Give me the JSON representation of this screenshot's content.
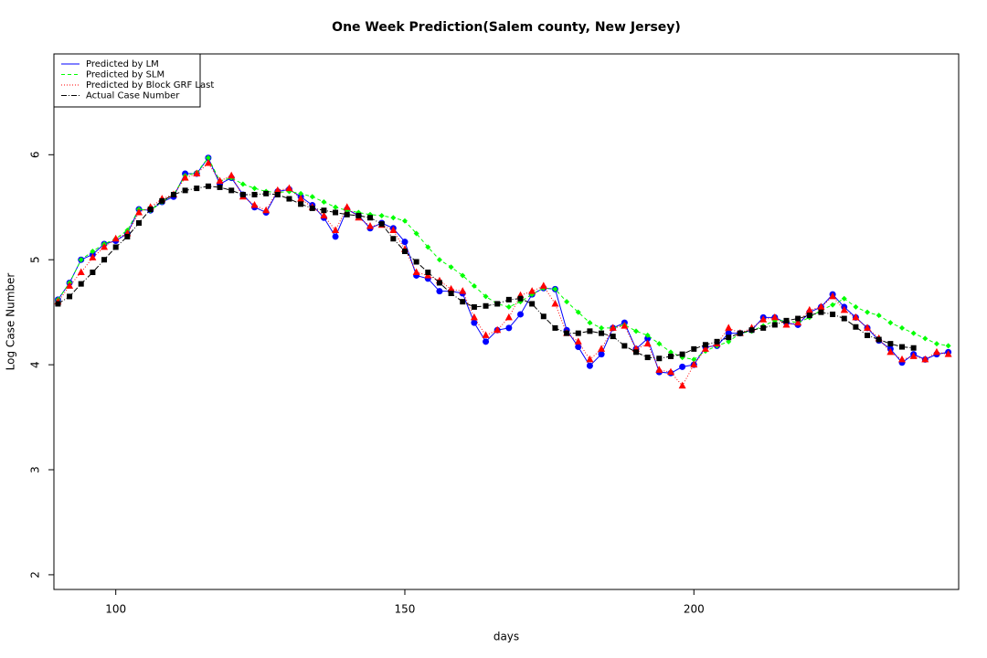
{
  "chart_data": {
    "type": "line",
    "title": "One Week Prediction(Salem county, New Jersey)",
    "x_label": "days",
    "y_label": "Log Case Number",
    "xlim": [
      89.3,
      245.8
    ],
    "ylim": [
      1.86,
      6.96
    ],
    "xticks": [
      100,
      150,
      200
    ],
    "yticks": [
      2,
      3,
      4,
      5,
      6
    ],
    "legend_position": "top-left",
    "x": [
      90,
      92,
      94,
      96,
      98,
      100,
      102,
      104,
      106,
      108,
      110,
      112,
      114,
      116,
      118,
      120,
      122,
      124,
      126,
      128,
      130,
      132,
      134,
      136,
      138,
      140,
      142,
      144,
      146,
      148,
      150,
      152,
      154,
      156,
      158,
      160,
      162,
      164,
      166,
      168,
      170,
      172,
      174,
      176,
      178,
      180,
      182,
      184,
      186,
      188,
      190,
      192,
      194,
      196,
      198,
      200,
      202,
      204,
      206,
      208,
      210,
      212,
      214,
      216,
      218,
      220,
      222,
      224,
      226,
      228,
      230,
      232,
      234,
      236,
      238,
      240,
      242,
      244
    ],
    "series": [
      {
        "name": "Predicted by LM",
        "color": "#0000ff",
        "line_style": "solid",
        "marker": "circle",
        "values": [
          4.62,
          4.78,
          5.0,
          5.05,
          5.15,
          5.18,
          5.25,
          5.48,
          5.47,
          5.55,
          5.6,
          5.82,
          5.82,
          5.97,
          5.72,
          5.78,
          5.62,
          5.5,
          5.45,
          5.65,
          5.67,
          5.6,
          5.52,
          5.4,
          5.22,
          5.48,
          5.42,
          5.3,
          5.35,
          5.3,
          5.17,
          4.85,
          4.82,
          4.7,
          4.7,
          4.68,
          4.4,
          4.22,
          4.33,
          4.35,
          4.48,
          4.67,
          4.73,
          4.72,
          4.33,
          4.17,
          3.99,
          4.1,
          4.35,
          4.4,
          4.15,
          4.25,
          3.93,
          3.92,
          3.98,
          4.0,
          4.17,
          4.18,
          4.3,
          4.3,
          4.33,
          4.45,
          4.45,
          4.4,
          4.38,
          4.5,
          4.55,
          4.67,
          4.55,
          4.45,
          4.35,
          4.23,
          4.15,
          4.02,
          4.1,
          4.05,
          4.1,
          4.12
        ]
      },
      {
        "name": "Predicted by SLM",
        "color": "#00ff00",
        "line_style": "dashed",
        "marker": "diamond",
        "values": [
          4.62,
          4.78,
          5.0,
          5.08,
          5.15,
          5.2,
          5.28,
          5.48,
          5.47,
          5.55,
          5.62,
          5.8,
          5.83,
          5.97,
          5.75,
          5.78,
          5.72,
          5.68,
          5.65,
          5.64,
          5.65,
          5.63,
          5.6,
          5.55,
          5.5,
          5.47,
          5.45,
          5.43,
          5.42,
          5.4,
          5.37,
          5.25,
          5.12,
          5.0,
          4.93,
          4.85,
          4.75,
          4.65,
          4.58,
          4.55,
          4.6,
          4.67,
          4.73,
          4.72,
          4.6,
          4.5,
          4.4,
          4.35,
          4.35,
          4.38,
          4.32,
          4.28,
          4.2,
          4.12,
          4.07,
          4.05,
          4.13,
          4.18,
          4.22,
          4.3,
          4.32,
          4.37,
          4.42,
          4.42,
          4.4,
          4.45,
          4.52,
          4.57,
          4.63,
          4.55,
          4.5,
          4.47,
          4.4,
          4.35,
          4.3,
          4.25,
          4.2,
          4.18
        ]
      },
      {
        "name": "Predicted by Block GRF Last",
        "color": "#ff0000",
        "line_style": "dotted",
        "marker": "triangle",
        "values": [
          4.6,
          4.75,
          4.88,
          5.02,
          5.12,
          5.2,
          5.25,
          5.45,
          5.5,
          5.58,
          5.62,
          5.78,
          5.82,
          5.92,
          5.75,
          5.8,
          5.6,
          5.52,
          5.47,
          5.66,
          5.68,
          5.58,
          5.5,
          5.42,
          5.28,
          5.5,
          5.4,
          5.32,
          5.33,
          5.28,
          5.1,
          4.88,
          4.85,
          4.8,
          4.72,
          4.7,
          4.45,
          4.28,
          4.33,
          4.45,
          4.66,
          4.7,
          4.75,
          4.58,
          4.3,
          4.22,
          4.05,
          4.15,
          4.35,
          4.37,
          4.15,
          4.2,
          3.95,
          3.93,
          3.8,
          4.0,
          4.15,
          4.2,
          4.35,
          4.3,
          4.35,
          4.43,
          4.45,
          4.38,
          4.4,
          4.52,
          4.55,
          4.65,
          4.52,
          4.45,
          4.35,
          4.25,
          4.12,
          4.05,
          4.08,
          4.05,
          4.12,
          4.1
        ]
      },
      {
        "name": "Actual Case Number",
        "color": "#000000",
        "line_style": "dashdot",
        "marker": "square",
        "values": [
          4.58,
          4.65,
          4.77,
          4.88,
          5.0,
          5.12,
          5.22,
          5.35,
          5.48,
          5.56,
          5.62,
          5.66,
          5.68,
          5.7,
          5.69,
          5.66,
          5.62,
          5.62,
          5.63,
          5.62,
          5.58,
          5.53,
          5.49,
          5.47,
          5.45,
          5.43,
          5.42,
          5.4,
          5.34,
          5.2,
          5.08,
          4.98,
          4.88,
          4.78,
          4.68,
          4.6,
          4.55,
          4.56,
          4.58,
          4.62,
          4.63,
          4.58,
          4.46,
          4.35,
          4.3,
          4.3,
          4.32,
          4.3,
          4.27,
          4.18,
          4.12,
          4.07,
          4.06,
          4.08,
          4.1,
          4.15,
          4.19,
          4.22,
          4.26,
          4.3,
          4.33,
          4.35,
          4.38,
          4.42,
          4.44,
          4.47,
          4.5,
          4.48,
          4.44,
          4.36,
          4.28,
          4.24,
          4.2,
          4.17,
          4.16,
          null,
          null,
          null
        ]
      }
    ]
  }
}
